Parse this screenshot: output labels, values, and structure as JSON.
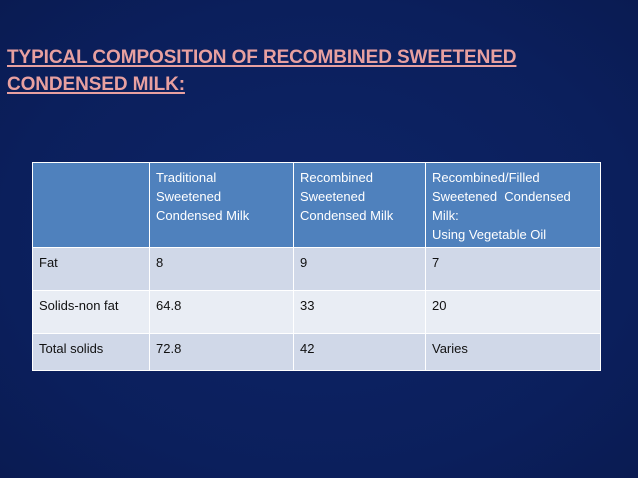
{
  "slide": {
    "title_line1": "TYPICAL COMPOSITION OF RECOMBINED SWEETENED",
    "title_line2": "CONDENSED MILK:"
  },
  "table": {
    "headers": [
      {
        "lines": [
          ""
        ]
      },
      {
        "lines": [
          "Traditional",
          "Sweetened",
          "Condensed Milk"
        ]
      },
      {
        "lines": [
          "Recombined",
          "Sweetened",
          "Condensed Milk"
        ]
      },
      {
        "lines": [
          "Recombined/Filled",
          "Sweetened  Condensed",
          "Milk:",
          "Using Vegetable Oil"
        ]
      }
    ],
    "rows": [
      {
        "label": "Fat",
        "values": [
          "8",
          "9",
          "7"
        ]
      },
      {
        "label": "Solids-non fat",
        "values": [
          "64.8",
          "33",
          "20"
        ]
      },
      {
        "label": "Total solids",
        "values": [
          "72.8",
          "42",
          "Varies"
        ]
      }
    ]
  },
  "colors": {
    "background": "#0c2060",
    "title": "#e8a0a0",
    "header_fill": "#4f81bd",
    "row_dark": "#d0d8e8",
    "row_light": "#e9edf4"
  }
}
